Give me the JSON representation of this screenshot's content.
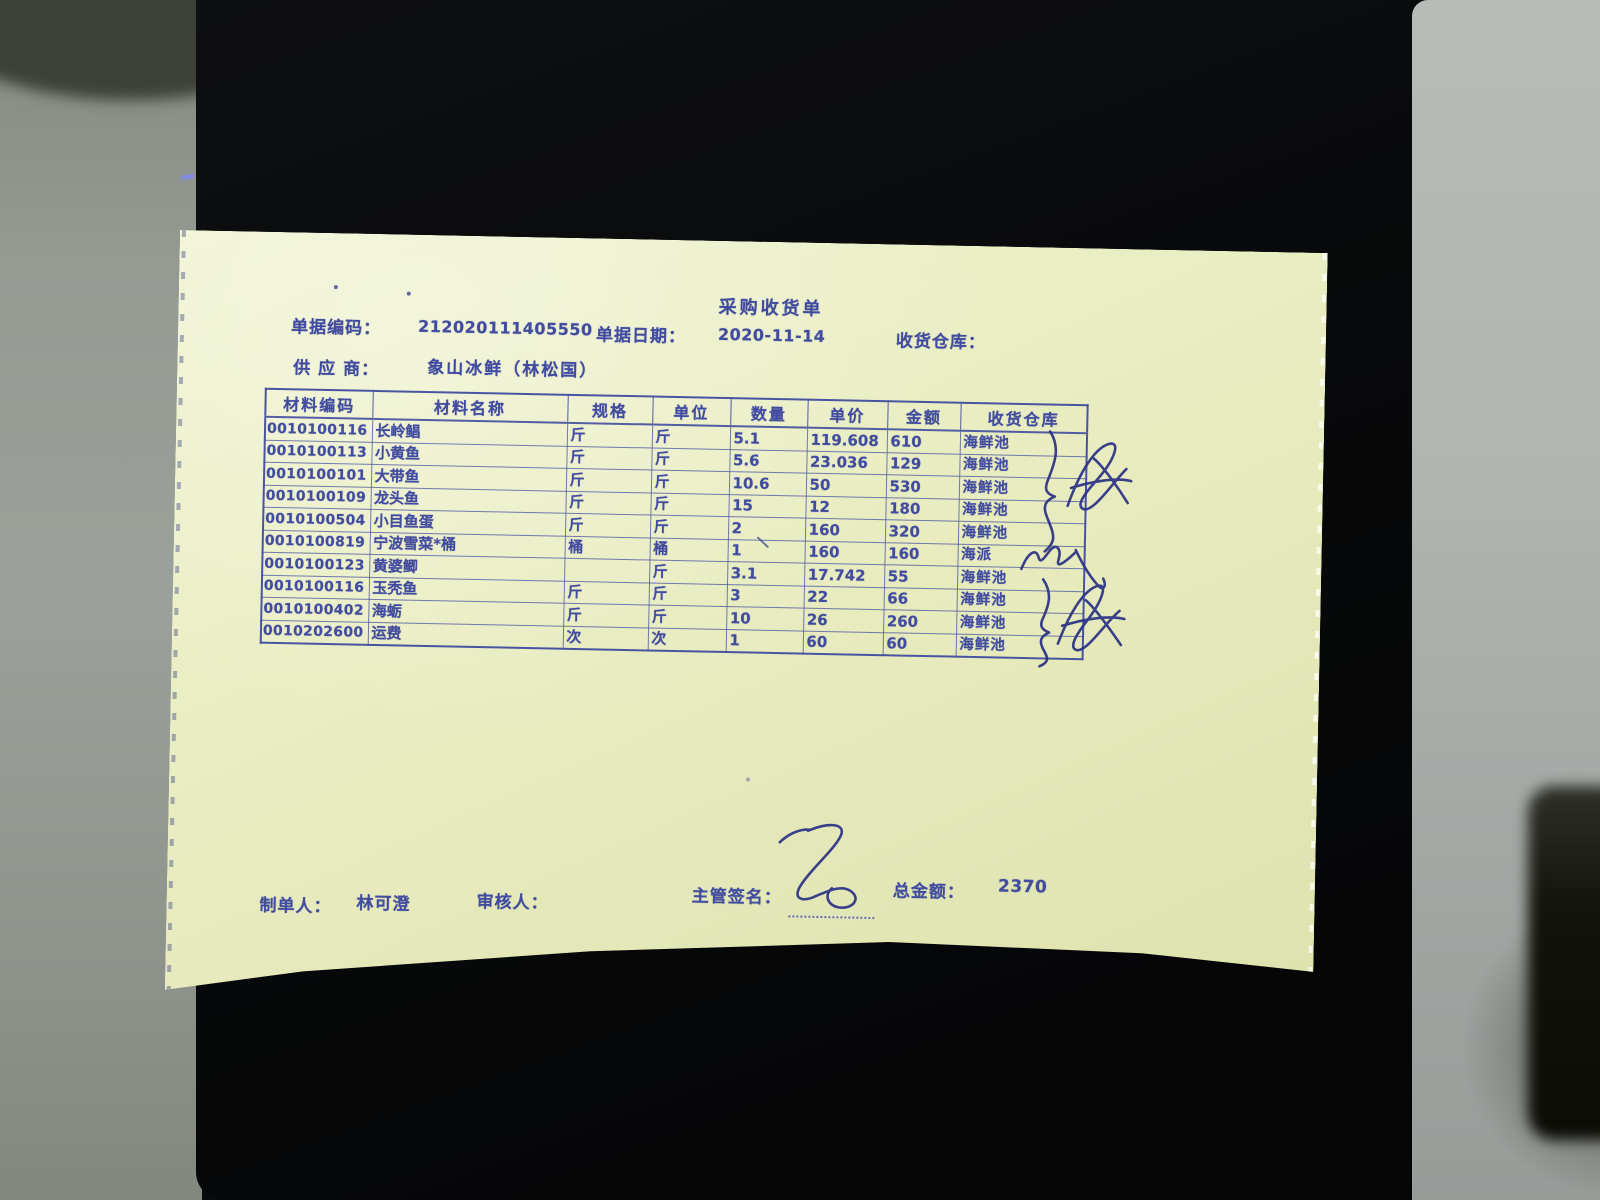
{
  "colors": {
    "paper": "#e9edc2",
    "print_ink": "#414b9f",
    "handwriting_ink": "#2a3184",
    "desk": "#9ba19a",
    "printer": "#0a0b0d"
  },
  "document": {
    "title": "采购收货单",
    "header": {
      "doc_no_label": "单据编码：",
      "doc_no": "212020111405550",
      "date_label": "单据日期：",
      "date": "2020-11-14",
      "warehouse_label": "收货仓库：",
      "supplier_label": "供 应 商：",
      "supplier": "象山冰鲜（林松国）"
    },
    "table": {
      "columns": [
        "材料编码",
        "材料名称",
        "规格",
        "单位",
        "数量",
        "单价",
        "金额",
        "收货仓库"
      ],
      "rows": [
        [
          "0010100116",
          "长岭鲳",
          "斤",
          "斤",
          "5.1",
          "119.608",
          "610",
          "海鲜池"
        ],
        [
          "0010100113",
          "小黄鱼",
          "斤",
          "斤",
          "5.6",
          "23.036",
          "129",
          "海鲜池"
        ],
        [
          "0010100101",
          "大带鱼",
          "斤",
          "斤",
          "10.6",
          "50",
          "530",
          "海鲜池"
        ],
        [
          "0010100109",
          "龙头鱼",
          "斤",
          "斤",
          "15",
          "12",
          "180",
          "海鲜池"
        ],
        [
          "0010100504",
          "小目鱼蛋",
          "斤",
          "斤",
          "2",
          "160",
          "320",
          "海鲜池"
        ],
        [
          "0010100819",
          "宁波雪菜*桶",
          "桶",
          "桶",
          "1",
          "160",
          "160",
          "海派"
        ],
        [
          "0010100123",
          "黄婆鲫",
          "",
          "斤",
          "3.1",
          "17.742",
          "55",
          "海鲜池"
        ],
        [
          "0010100116",
          "玉秃鱼",
          "斤",
          "斤",
          "3",
          "22",
          "66",
          "海鲜池"
        ],
        [
          "0010100402",
          "海蛎",
          "斤",
          "斤",
          "10",
          "26",
          "260",
          "海鲜池"
        ],
        [
          "0010202600",
          "运费",
          "次",
          "次",
          "1",
          "60",
          "60",
          "海鲜池"
        ]
      ]
    },
    "footer": {
      "maker_label": "制单人：",
      "maker": "林可澄",
      "auditor_label": "审核人：",
      "supervisor_label": "主管签名：",
      "total_label": "总金额：",
      "total": "2370"
    }
  }
}
